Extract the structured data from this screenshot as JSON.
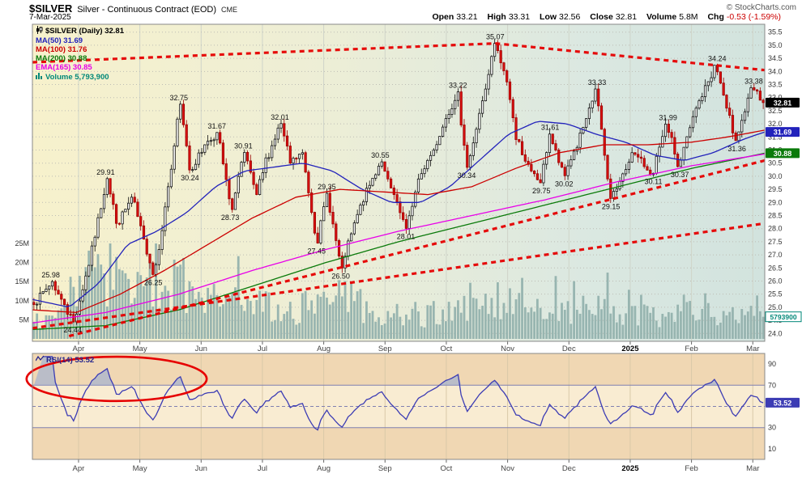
{
  "header": {
    "symbol": "$SILVER",
    "description": "Silver - Continuous Contract (EOD)",
    "exchange": "CME",
    "copyright": "© StockCharts.com",
    "date": "7-Mar-2025",
    "quote": {
      "open_label": "Open",
      "open_value": "33.21",
      "high_label": "High",
      "high_value": "33.31",
      "low_label": "Low",
      "low_value": "32.56",
      "close_label": "Close",
      "close_value": "32.81",
      "volume_label": "Volume",
      "volume_value": "5.8M",
      "chg_label": "Chg",
      "chg_value": "-0.53 (-1.59%)"
    }
  },
  "legend": {
    "main": [
      {
        "label": "$SILVER (Daily) 32.81",
        "color": "#000000",
        "icon": "candles"
      },
      {
        "label": "MA(50) 31.69",
        "color": "#2222bb"
      },
      {
        "label": "MA(100) 31.76",
        "color": "#cc0000"
      },
      {
        "label": "MA(200) 30.88",
        "color": "#0a7a0a"
      },
      {
        "label": "EMA(165) 30.85",
        "color": "#e800e8"
      },
      {
        "label": "Volume 5,793,900",
        "color": "#008878",
        "icon": "bars"
      }
    ],
    "rsi": {
      "label": "RSI(14) 53.52",
      "color": "#24248c",
      "icon": "zigzag"
    }
  },
  "chart_data": {
    "type": "candlestick",
    "symbol": "$SILVER",
    "timeframe": "Daily",
    "title": "$SILVER Silver - Continuous Contract (EOD) CME",
    "x_axis": {
      "month_labels": [
        "Apr",
        "May",
        "Jun",
        "Jul",
        "Aug",
        "Sep",
        "Oct",
        "Nov",
        "Dec",
        "2025",
        "Feb",
        "Mar"
      ],
      "bold_label": "2025"
    },
    "price_axis": {
      "min": 24.0,
      "max": 35.5,
      "step": 0.5
    },
    "last": {
      "close": 32.81,
      "ma50": 31.69,
      "ma100": 31.76,
      "ma200": 30.88,
      "ema165": 30.85,
      "volume_label": "5793900",
      "volume_m": 5.79,
      "rsi": 53.52
    },
    "price_anchors": [
      [
        0.0,
        25.1
      ],
      [
        0.025,
        25.98
      ],
      [
        0.04,
        25.1
      ],
      [
        0.055,
        24.44
      ],
      [
        0.075,
        26.6
      ],
      [
        0.1,
        29.91
      ],
      [
        0.115,
        28.2
      ],
      [
        0.135,
        29.2
      ],
      [
        0.15,
        27.6
      ],
      [
        0.165,
        26.25
      ],
      [
        0.185,
        29.6
      ],
      [
        0.2,
        32.75
      ],
      [
        0.215,
        30.24
      ],
      [
        0.235,
        31.2
      ],
      [
        0.252,
        31.67
      ],
      [
        0.27,
        28.73
      ],
      [
        0.288,
        30.91
      ],
      [
        0.305,
        29.3
      ],
      [
        0.32,
        30.7
      ],
      [
        0.338,
        32.01
      ],
      [
        0.352,
        30.5
      ],
      [
        0.368,
        30.9
      ],
      [
        0.388,
        27.45
      ],
      [
        0.402,
        29.35
      ],
      [
        0.421,
        26.5
      ],
      [
        0.448,
        28.9
      ],
      [
        0.475,
        30.55
      ],
      [
        0.492,
        29.3
      ],
      [
        0.51,
        28.01
      ],
      [
        0.53,
        30.1
      ],
      [
        0.548,
        31.0
      ],
      [
        0.565,
        32.2
      ],
      [
        0.581,
        33.22
      ],
      [
        0.593,
        30.34
      ],
      [
        0.612,
        32.4
      ],
      [
        0.632,
        35.07
      ],
      [
        0.648,
        33.6
      ],
      [
        0.663,
        31.4
      ],
      [
        0.68,
        30.2
      ],
      [
        0.695,
        29.75
      ],
      [
        0.707,
        31.61
      ],
      [
        0.726,
        30.02
      ],
      [
        0.743,
        31.1
      ],
      [
        0.758,
        32.2
      ],
      [
        0.771,
        33.33
      ],
      [
        0.782,
        30.8
      ],
      [
        0.79,
        29.15
      ],
      [
        0.805,
        29.8
      ],
      [
        0.82,
        30.9
      ],
      [
        0.848,
        30.11
      ],
      [
        0.868,
        31.99
      ],
      [
        0.884,
        30.37
      ],
      [
        0.908,
        32.6
      ],
      [
        0.935,
        34.24
      ],
      [
        0.95,
        32.6
      ],
      [
        0.962,
        31.36
      ],
      [
        0.985,
        33.38
      ],
      [
        1.0,
        32.81
      ]
    ],
    "swing_labels": [
      {
        "t": 0.025,
        "price": 25.98,
        "text": "25.98",
        "side": "high"
      },
      {
        "t": 0.055,
        "price": 24.44,
        "text": "24.44",
        "side": "low"
      },
      {
        "t": 0.1,
        "price": 29.91,
        "text": "29.91",
        "side": "high"
      },
      {
        "t": 0.165,
        "price": 26.25,
        "text": "26.25",
        "side": "low"
      },
      {
        "t": 0.2,
        "price": 32.75,
        "text": "32.75",
        "side": "high"
      },
      {
        "t": 0.215,
        "price": 30.24,
        "text": "30.24",
        "side": "low"
      },
      {
        "t": 0.252,
        "price": 31.67,
        "text": "31.67",
        "side": "high"
      },
      {
        "t": 0.27,
        "price": 28.73,
        "text": "28.73",
        "side": "low"
      },
      {
        "t": 0.288,
        "price": 30.91,
        "text": "30.91",
        "side": "high"
      },
      {
        "t": 0.338,
        "price": 32.01,
        "text": "32.01",
        "side": "high"
      },
      {
        "t": 0.388,
        "price": 27.45,
        "text": "27.45",
        "side": "low"
      },
      {
        "t": 0.402,
        "price": 29.35,
        "text": "29.35",
        "side": "high"
      },
      {
        "t": 0.421,
        "price": 26.5,
        "text": "26.50",
        "side": "low"
      },
      {
        "t": 0.475,
        "price": 30.55,
        "text": "30.55",
        "side": "high"
      },
      {
        "t": 0.51,
        "price": 28.01,
        "text": "28.01",
        "side": "low"
      },
      {
        "t": 0.581,
        "price": 33.22,
        "text": "33.22",
        "side": "high"
      },
      {
        "t": 0.593,
        "price": 30.34,
        "text": "30.34",
        "side": "low"
      },
      {
        "t": 0.632,
        "price": 35.07,
        "text": "35.07",
        "side": "high"
      },
      {
        "t": 0.695,
        "price": 29.75,
        "text": "29.75",
        "side": "low"
      },
      {
        "t": 0.707,
        "price": 31.61,
        "text": "31.61",
        "side": "high"
      },
      {
        "t": 0.726,
        "price": 30.02,
        "text": "30.02",
        "side": "low"
      },
      {
        "t": 0.771,
        "price": 33.33,
        "text": "33.33",
        "side": "high"
      },
      {
        "t": 0.79,
        "price": 29.15,
        "text": "29.15",
        "side": "low"
      },
      {
        "t": 0.848,
        "price": 30.11,
        "text": "30.11",
        "side": "low"
      },
      {
        "t": 0.868,
        "price": 31.99,
        "text": "31.99",
        "side": "high"
      },
      {
        "t": 0.884,
        "price": 30.37,
        "text": "30.37",
        "side": "low"
      },
      {
        "t": 0.935,
        "price": 34.24,
        "text": "34.24",
        "side": "high"
      },
      {
        "t": 0.962,
        "price": 31.36,
        "text": "31.36",
        "side": "low"
      },
      {
        "t": 0.985,
        "price": 33.38,
        "text": "33.38",
        "side": "high"
      }
    ],
    "overlays": [
      {
        "name": "MA(50)",
        "color": "#2222bb",
        "points": [
          [
            0,
            25.3
          ],
          [
            0.05,
            25.0
          ],
          [
            0.09,
            25.9
          ],
          [
            0.13,
            27.4
          ],
          [
            0.17,
            27.9
          ],
          [
            0.21,
            28.6
          ],
          [
            0.25,
            29.6
          ],
          [
            0.29,
            30.2
          ],
          [
            0.33,
            30.35
          ],
          [
            0.37,
            30.5
          ],
          [
            0.41,
            30.2
          ],
          [
            0.45,
            29.5
          ],
          [
            0.49,
            29.0
          ],
          [
            0.53,
            29.0
          ],
          [
            0.57,
            29.6
          ],
          [
            0.61,
            30.6
          ],
          [
            0.65,
            31.6
          ],
          [
            0.69,
            32.1
          ],
          [
            0.73,
            32.0
          ],
          [
            0.77,
            31.6
          ],
          [
            0.81,
            31.3
          ],
          [
            0.85,
            30.8
          ],
          [
            0.89,
            30.6
          ],
          [
            0.93,
            30.9
          ],
          [
            0.97,
            31.4
          ],
          [
            1,
            31.69
          ]
        ]
      },
      {
        "name": "MA(100)",
        "color": "#cc0000",
        "points": [
          [
            0,
            24.9
          ],
          [
            0.06,
            24.8
          ],
          [
            0.12,
            25.5
          ],
          [
            0.18,
            26.4
          ],
          [
            0.24,
            27.4
          ],
          [
            0.3,
            28.4
          ],
          [
            0.36,
            29.2
          ],
          [
            0.42,
            29.5
          ],
          [
            0.48,
            29.4
          ],
          [
            0.54,
            29.3
          ],
          [
            0.6,
            29.6
          ],
          [
            0.66,
            30.3
          ],
          [
            0.72,
            30.9
          ],
          [
            0.78,
            31.2
          ],
          [
            0.84,
            31.2
          ],
          [
            0.9,
            31.3
          ],
          [
            0.95,
            31.5
          ],
          [
            1,
            31.76
          ]
        ]
      },
      {
        "name": "MA(200)",
        "color": "#0a7a0a",
        "points": [
          [
            0,
            24.15
          ],
          [
            0.1,
            24.3
          ],
          [
            0.2,
            24.9
          ],
          [
            0.3,
            25.8
          ],
          [
            0.4,
            26.7
          ],
          [
            0.5,
            27.5
          ],
          [
            0.6,
            28.2
          ],
          [
            0.7,
            28.9
          ],
          [
            0.8,
            29.6
          ],
          [
            0.9,
            30.3
          ],
          [
            1,
            30.88
          ]
        ]
      },
      {
        "name": "EMA(165)",
        "color": "#e800e8",
        "points": [
          [
            0,
            24.4
          ],
          [
            0.1,
            24.8
          ],
          [
            0.2,
            25.5
          ],
          [
            0.3,
            26.4
          ],
          [
            0.4,
            27.2
          ],
          [
            0.5,
            27.9
          ],
          [
            0.6,
            28.5
          ],
          [
            0.7,
            29.1
          ],
          [
            0.8,
            29.8
          ],
          [
            0.9,
            30.4
          ],
          [
            1,
            30.85
          ]
        ]
      }
    ],
    "volume": {
      "color": "#92b1ad",
      "axis_ticks_m": [
        5,
        10,
        15,
        20,
        25
      ],
      "envelope_m": [
        [
          0.0,
          6
        ],
        [
          0.04,
          8
        ],
        [
          0.07,
          15
        ],
        [
          0.1,
          18
        ],
        [
          0.13,
          12
        ],
        [
          0.17,
          13
        ],
        [
          0.2,
          15
        ],
        [
          0.23,
          11
        ],
        [
          0.27,
          9
        ],
        [
          0.31,
          8
        ],
        [
          0.35,
          7
        ],
        [
          0.39,
          10
        ],
        [
          0.42,
          11
        ],
        [
          0.46,
          7
        ],
        [
          0.51,
          7
        ],
        [
          0.56,
          6
        ],
        [
          0.6,
          8
        ],
        [
          0.63,
          10
        ],
        [
          0.67,
          8
        ],
        [
          0.72,
          7
        ],
        [
          0.76,
          8
        ],
        [
          0.79,
          7
        ],
        [
          0.83,
          6
        ],
        [
          0.87,
          7
        ],
        [
          0.91,
          8
        ],
        [
          0.95,
          7
        ],
        [
          1.0,
          5.5
        ]
      ],
      "last_label": "5793900",
      "last_value_m": 5.79
    },
    "trendlines": [
      {
        "points": [
          [
            0,
            34.35
          ],
          [
            0.632,
            35.07
          ]
        ]
      },
      {
        "points": [
          [
            0.632,
            35.07
          ],
          [
            1,
            34.05
          ]
        ]
      },
      {
        "points": [
          [
            0,
            24.2
          ],
          [
            1,
            28.2
          ]
        ]
      },
      {
        "points": [
          [
            0.05,
            23.9
          ],
          [
            1,
            30.6
          ]
        ]
      }
    ],
    "trendline_color": "#e60000",
    "axis_flags": [
      {
        "value": "32.81",
        "price": 32.81,
        "bg": "#000000"
      },
      {
        "value": "31.69",
        "price": 31.69,
        "bg": "#2222bb"
      },
      {
        "value": "30.88",
        "price": 30.88,
        "bg": "#0a7a0a"
      }
    ],
    "rsi": {
      "period": 14,
      "value": 53.52,
      "value_label": "53.52",
      "axis_ticks": [
        10,
        30,
        70,
        90
      ],
      "overbought": 70,
      "oversold": 30,
      "midline": 50,
      "line_color": "#3c3cb4",
      "flag_bg": "#3c3cb4",
      "highlight_ellipse": {
        "t_center": 0.115,
        "value_center": 76,
        "t_radius": 0.123,
        "value_radius": 11,
        "color": "#e60000"
      }
    },
    "colors": {
      "bg_gradient": [
        "#f7f1cc",
        "#edeed6",
        "#dbe8e1",
        "#d2e3de"
      ],
      "grid_v": "#cfd4c9",
      "grid_h": "#bdbdb5",
      "candle_up_stroke": "#111111",
      "candle_up_fill": "#ffffff",
      "candle_down_stroke": "#990000",
      "candle_down_fill": "#dd1111",
      "rsi_band_outer": "#f0d7b3",
      "rsi_band_inner": "#f9ecd2",
      "rsi_guide": "#8080b0",
      "panel_border": "#888888",
      "axis_text": "#333333"
    }
  }
}
